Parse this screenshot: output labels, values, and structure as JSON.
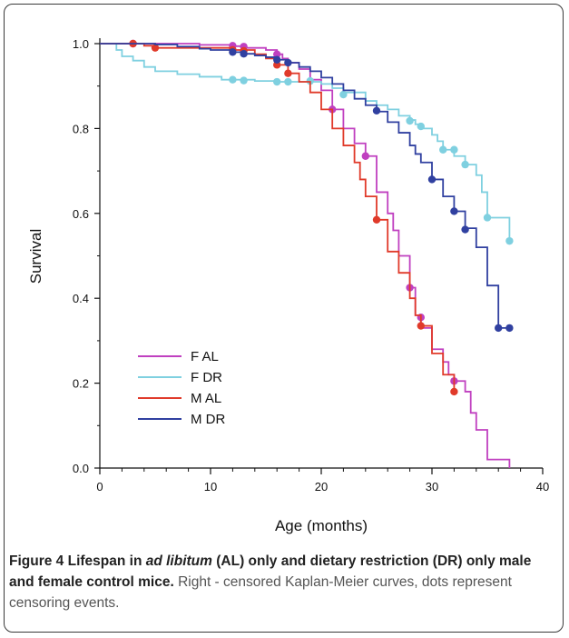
{
  "chart_data": {
    "type": "line",
    "subtype": "kaplan-meier step survival curves",
    "xlabel": "Age (months)",
    "ylabel": "Survival",
    "xlim": [
      0,
      40
    ],
    "ylim": [
      0,
      1.0
    ],
    "xticks": [
      0,
      10,
      20,
      30,
      40
    ],
    "yticks": [
      0.0,
      0.2,
      0.4,
      0.6,
      0.8,
      1.0
    ],
    "xtick_labels": [
      "0",
      "10",
      "20",
      "30",
      "40"
    ],
    "ytick_labels": [
      "0.0",
      "0.2",
      "0.4",
      "0.6",
      "0.8",
      "1.0"
    ],
    "grid": false,
    "legend_position": "lower-left",
    "series": [
      {
        "name": "F AL",
        "color": "#c040c0",
        "steps": [
          [
            0,
            1.0
          ],
          [
            3,
            1.0
          ],
          [
            9,
            0.997
          ],
          [
            12,
            0.994
          ],
          [
            13,
            0.99
          ],
          [
            15,
            0.985
          ],
          [
            16,
            0.975
          ],
          [
            16.5,
            0.965
          ],
          [
            17,
            0.955
          ],
          [
            18,
            0.94
          ],
          [
            19,
            0.915
          ],
          [
            20,
            0.89
          ],
          [
            21,
            0.845
          ],
          [
            22,
            0.8
          ],
          [
            23,
            0.765
          ],
          [
            24,
            0.735
          ],
          [
            25,
            0.65
          ],
          [
            26,
            0.6
          ],
          [
            26.5,
            0.56
          ],
          [
            27,
            0.5
          ],
          [
            28,
            0.425
          ],
          [
            28.5,
            0.36
          ],
          [
            29,
            0.33
          ],
          [
            30,
            0.28
          ],
          [
            31,
            0.25
          ],
          [
            31.5,
            0.22
          ],
          [
            32,
            0.205
          ],
          [
            33,
            0.18
          ],
          [
            33.5,
            0.13
          ],
          [
            34,
            0.09
          ],
          [
            35,
            0.02
          ],
          [
            37,
            0.0
          ]
        ],
        "censored": [
          [
            3,
            1.0
          ],
          [
            12,
            0.995
          ],
          [
            13,
            0.993
          ],
          [
            16,
            0.975
          ],
          [
            21,
            0.845
          ],
          [
            24,
            0.735
          ],
          [
            28,
            0.425
          ],
          [
            29,
            0.355
          ],
          [
            32,
            0.205
          ]
        ]
      },
      {
        "name": "F DR",
        "color": "#7fd0e0",
        "steps": [
          [
            0,
            1.0
          ],
          [
            1.5,
            0.985
          ],
          [
            2,
            0.97
          ],
          [
            3,
            0.96
          ],
          [
            4,
            0.945
          ],
          [
            5,
            0.935
          ],
          [
            7,
            0.928
          ],
          [
            9,
            0.922
          ],
          [
            11,
            0.915
          ],
          [
            14,
            0.912
          ],
          [
            16,
            0.91
          ],
          [
            19,
            0.91
          ],
          [
            20,
            0.905
          ],
          [
            21,
            0.895
          ],
          [
            22,
            0.885
          ],
          [
            24,
            0.865
          ],
          [
            25,
            0.855
          ],
          [
            26,
            0.845
          ],
          [
            27,
            0.83
          ],
          [
            28,
            0.82
          ],
          [
            28.5,
            0.81
          ],
          [
            29,
            0.8
          ],
          [
            30,
            0.785
          ],
          [
            30.5,
            0.77
          ],
          [
            31,
            0.75
          ],
          [
            32,
            0.735
          ],
          [
            33,
            0.715
          ],
          [
            34,
            0.69
          ],
          [
            34.5,
            0.65
          ],
          [
            35,
            0.59
          ],
          [
            37,
            0.535
          ]
        ],
        "censored": [
          [
            12,
            0.915
          ],
          [
            13,
            0.913
          ],
          [
            16,
            0.91
          ],
          [
            17,
            0.91
          ],
          [
            19,
            0.912
          ],
          [
            22,
            0.88
          ],
          [
            28,
            0.818
          ],
          [
            29,
            0.805
          ],
          [
            31,
            0.75
          ],
          [
            32,
            0.75
          ],
          [
            33,
            0.715
          ],
          [
            35,
            0.59
          ],
          [
            37,
            0.535
          ]
        ]
      },
      {
        "name": "M AL",
        "color": "#e03a2a",
        "steps": [
          [
            0,
            1.0
          ],
          [
            3,
            1.0
          ],
          [
            4,
            0.995
          ],
          [
            5,
            0.99
          ],
          [
            12,
            0.985
          ],
          [
            14,
            0.975
          ],
          [
            15,
            0.965
          ],
          [
            16,
            0.95
          ],
          [
            17,
            0.93
          ],
          [
            18,
            0.91
          ],
          [
            19,
            0.885
          ],
          [
            20,
            0.845
          ],
          [
            21,
            0.8
          ],
          [
            22,
            0.76
          ],
          [
            23,
            0.72
          ],
          [
            23.5,
            0.68
          ],
          [
            24,
            0.64
          ],
          [
            25,
            0.585
          ],
          [
            26,
            0.51
          ],
          [
            27,
            0.46
          ],
          [
            28,
            0.4
          ],
          [
            28.5,
            0.36
          ],
          [
            29,
            0.335
          ],
          [
            30,
            0.27
          ],
          [
            31,
            0.22
          ],
          [
            32,
            0.18
          ]
        ],
        "censored": [
          [
            3,
            1.0
          ],
          [
            5,
            0.99
          ],
          [
            12,
            0.985
          ],
          [
            13,
            0.983
          ],
          [
            16,
            0.95
          ],
          [
            17,
            0.93
          ],
          [
            25,
            0.585
          ],
          [
            29,
            0.335
          ],
          [
            32,
            0.18
          ]
        ]
      },
      {
        "name": "M DR",
        "color": "#3040a0",
        "steps": [
          [
            0,
            1.0
          ],
          [
            5,
            0.998
          ],
          [
            7,
            0.993
          ],
          [
            9,
            0.988
          ],
          [
            10,
            0.985
          ],
          [
            12,
            0.98
          ],
          [
            13,
            0.976
          ],
          [
            14,
            0.972
          ],
          [
            15,
            0.968
          ],
          [
            16,
            0.962
          ],
          [
            17,
            0.955
          ],
          [
            18,
            0.945
          ],
          [
            19,
            0.935
          ],
          [
            20,
            0.92
          ],
          [
            21,
            0.905
          ],
          [
            22,
            0.89
          ],
          [
            23,
            0.87
          ],
          [
            24,
            0.855
          ],
          [
            25,
            0.84
          ],
          [
            26,
            0.815
          ],
          [
            27,
            0.79
          ],
          [
            28,
            0.76
          ],
          [
            28.5,
            0.74
          ],
          [
            29,
            0.72
          ],
          [
            30,
            0.68
          ],
          [
            31,
            0.64
          ],
          [
            32,
            0.605
          ],
          [
            33,
            0.565
          ],
          [
            34,
            0.52
          ],
          [
            35,
            0.43
          ],
          [
            36,
            0.33
          ],
          [
            37,
            0.33
          ]
        ],
        "censored": [
          [
            12,
            0.98
          ],
          [
            13,
            0.976
          ],
          [
            16,
            0.962
          ],
          [
            17,
            0.955
          ],
          [
            25,
            0.842
          ],
          [
            30,
            0.68
          ],
          [
            32,
            0.605
          ],
          [
            33,
            0.562
          ],
          [
            36,
            0.33
          ],
          [
            37,
            0.33
          ]
        ]
      }
    ]
  },
  "caption": {
    "label": "Figure 4",
    "title_before": "Lifespan in ",
    "title_italic": "ad libitum",
    "title_after": " (AL) only and dietary restriction (DR) only male and female control mice.",
    "description": "Right - censored Kaplan-Meier curves, dots represent censoring events."
  }
}
